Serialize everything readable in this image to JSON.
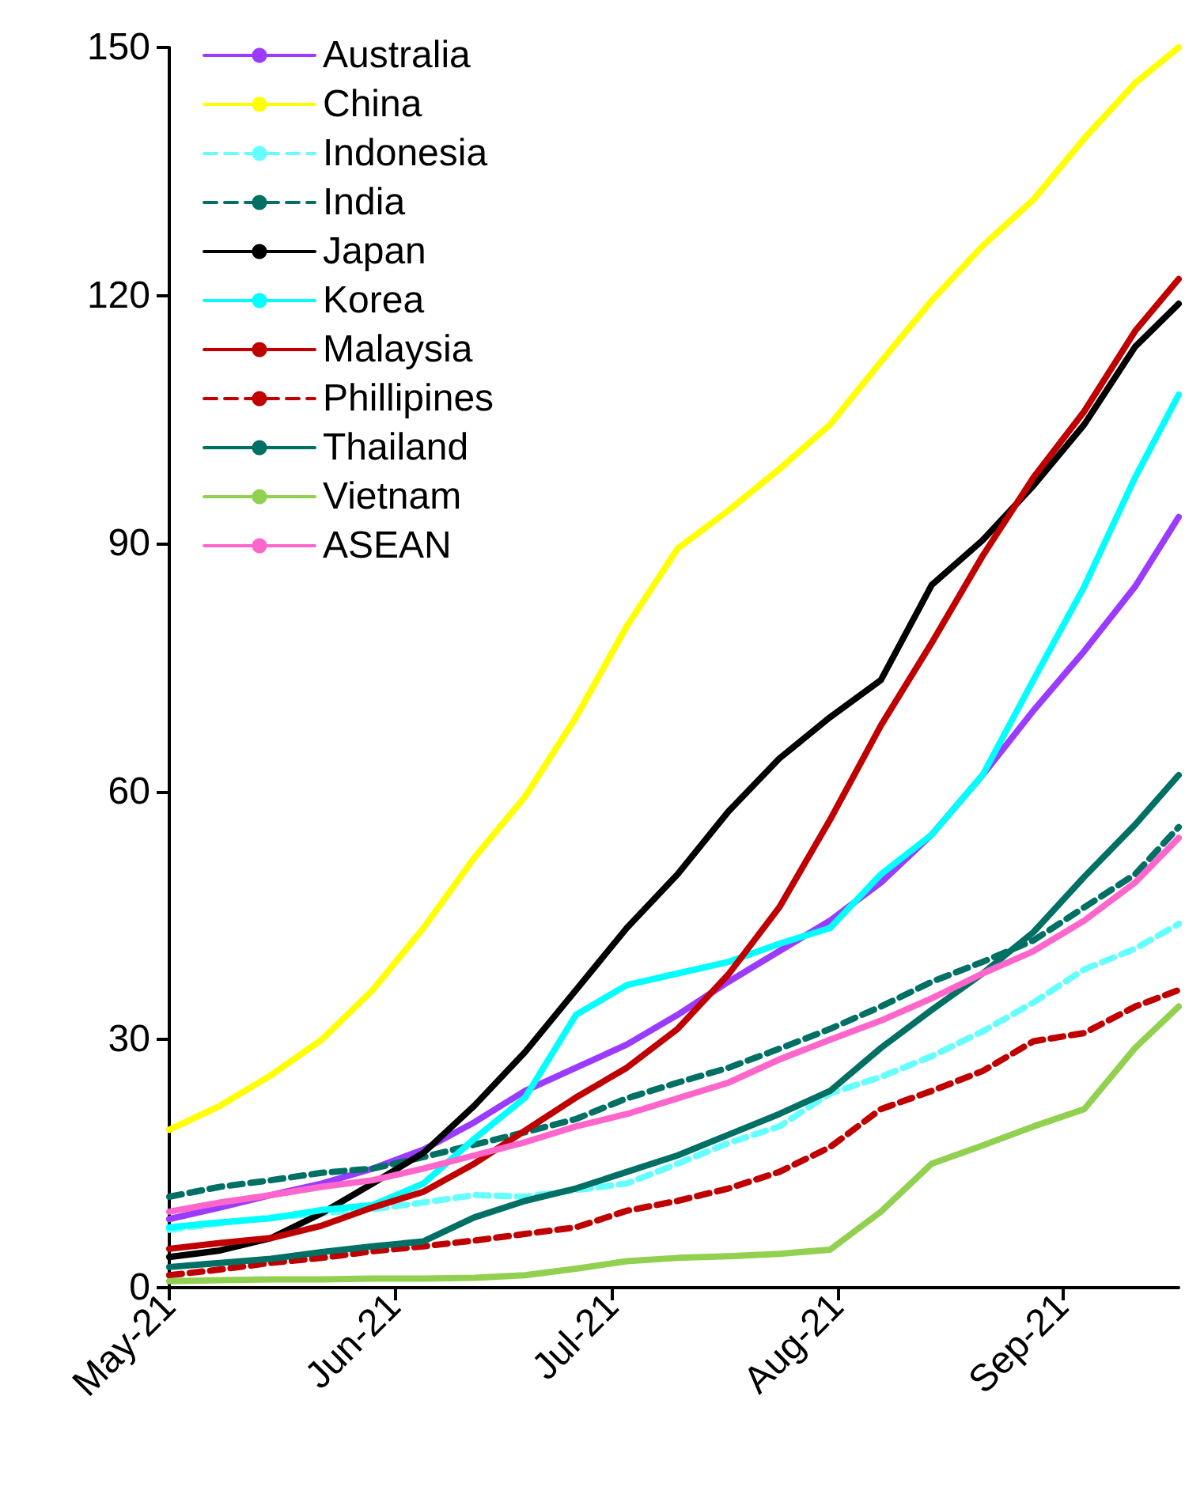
{
  "chart_data": {
    "type": "line",
    "x": [
      "2021-05-01",
      "2021-05-08",
      "2021-05-15",
      "2021-05-22",
      "2021-05-29",
      "2021-06-05",
      "2021-06-12",
      "2021-06-19",
      "2021-06-26",
      "2021-07-03",
      "2021-07-10",
      "2021-07-17",
      "2021-07-24",
      "2021-07-31",
      "2021-08-07",
      "2021-08-14",
      "2021-08-21",
      "2021-08-28",
      "2021-09-04",
      "2021-09-11",
      "2021-09-17"
    ],
    "xlim": [
      "2021-05-01",
      "2021-09-17"
    ],
    "xticks": [
      {
        "value": "2021-05-01",
        "label": "May-21"
      },
      {
        "value": "2021-06-01",
        "label": "Jun-21"
      },
      {
        "value": "2021-07-01",
        "label": "Jul-21"
      },
      {
        "value": "2021-08-01",
        "label": "Aug-21"
      },
      {
        "value": "2021-09-01",
        "label": "Sep-21"
      }
    ],
    "ylim": [
      0,
      150
    ],
    "yticks": [
      0,
      30,
      60,
      90,
      120,
      150
    ],
    "grid": false,
    "legend": "top left",
    "marker": "none",
    "series": [
      {
        "name": "Australia",
        "color": "#9b3bff",
        "line_style": "solid",
        "values": [
          8.3,
          9.7,
          11.2,
          12.6,
          14.4,
          16.7,
          20,
          23.8,
          26.6,
          29.4,
          33,
          37,
          40.7,
          44.4,
          49,
          54.8,
          62,
          69.8,
          77,
          84.8,
          93.2
        ]
      },
      {
        "name": "China",
        "color": "#ffff00",
        "line_style": "solid",
        "values": [
          19.1,
          22,
          25.7,
          30,
          36,
          43.5,
          52,
          59.4,
          69,
          80,
          89.4,
          94,
          99,
          104.4,
          112,
          119.4,
          126,
          131.6,
          139,
          145.7,
          150
        ]
      },
      {
        "name": "Indonesia",
        "color": "#66ffff",
        "line_style": "dashed",
        "values": [
          7,
          7.8,
          8.5,
          9,
          9.5,
          10.3,
          11.2,
          11,
          11.8,
          12.6,
          15,
          17.5,
          19.5,
          23.5,
          25.5,
          28,
          31,
          34.5,
          38.5,
          41,
          44
        ]
      },
      {
        "name": "India",
        "color": "#007064",
        "line_style": "dashed",
        "values": [
          11,
          12.2,
          13,
          13.9,
          14.4,
          15.8,
          17.3,
          18.8,
          20.4,
          22.9,
          24.8,
          26.6,
          28.9,
          31.3,
          34,
          37,
          39.4,
          42,
          46,
          50,
          55.7
        ]
      },
      {
        "name": "Japan",
        "color": "#000000",
        "line_style": "solid",
        "values": [
          3.7,
          4.5,
          6,
          9,
          12.6,
          16.3,
          22,
          28.5,
          36,
          43.5,
          50,
          57.6,
          64,
          69,
          73.5,
          85,
          90.4,
          97,
          104.4,
          113.8,
          119
        ]
      },
      {
        "name": "Korea",
        "color": "#00ffff",
        "line_style": "solid",
        "values": [
          7.3,
          7.9,
          8.4,
          9.4,
          10,
          12.6,
          18,
          23,
          33,
          36.6,
          38,
          39.4,
          41.6,
          43.5,
          50,
          54.8,
          62,
          73.5,
          84.8,
          98,
          108
        ]
      },
      {
        "name": "Malaysia",
        "color": "#c00000",
        "line_style": "solid",
        "values": [
          4.7,
          5.4,
          6,
          7.5,
          9.7,
          11.6,
          15,
          19,
          23,
          26.6,
          31.3,
          37.9,
          46,
          56.6,
          68,
          78,
          88.5,
          98,
          106,
          115.7,
          122
        ]
      },
      {
        "name": "Phillipines",
        "color": "#c00000",
        "line_style": "dashed",
        "values": [
          1.5,
          2.2,
          3,
          3.6,
          4.4,
          5,
          5.7,
          6.5,
          7.3,
          9.3,
          10.5,
          12,
          14,
          17,
          21.6,
          23.8,
          26.2,
          29.8,
          30.8,
          34,
          36
        ]
      },
      {
        "name": "Thailand",
        "color": "#007064",
        "line_style": "solid",
        "values": [
          2.5,
          3,
          3.5,
          4.3,
          5,
          5.6,
          8.5,
          10.5,
          12,
          14,
          16,
          18.5,
          21,
          23.8,
          29,
          33.6,
          38,
          43,
          49.7,
          56,
          62
        ]
      },
      {
        "name": "Vietnam",
        "color": "#92d050",
        "line_style": "solid",
        "values": [
          0.8,
          0.9,
          1,
          1,
          1.1,
          1.1,
          1.2,
          1.5,
          2.3,
          3.2,
          3.6,
          3.8,
          4.1,
          4.6,
          9.2,
          15,
          17.2,
          19.5,
          21.6,
          29,
          34
        ]
      },
      {
        "name": "ASEAN",
        "color": "#ff66cc",
        "line_style": "solid",
        "values": [
          9.2,
          10.3,
          11.2,
          12.2,
          13,
          14.4,
          16,
          17.6,
          19.5,
          21,
          22.9,
          24.8,
          27.6,
          30,
          32.3,
          35,
          38,
          40.7,
          44.4,
          49,
          54.4
        ]
      }
    ]
  }
}
